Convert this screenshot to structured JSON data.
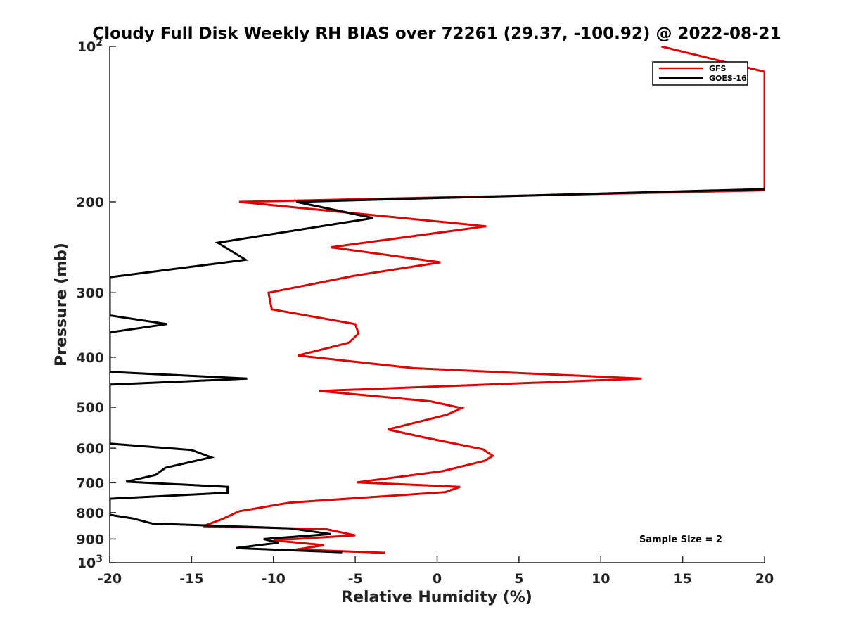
{
  "chart_data": {
    "type": "line",
    "title": "Cloudy Full Disk Weekly RH BIAS over 72261 (29.37, -100.92) @ 2022-08-21",
    "xlabel": "Relative Humidity (%)",
    "ylabel": "Pressure (mb)",
    "xlim": [
      -20,
      20
    ],
    "ylim": [
      100,
      1000
    ],
    "y_scale": "log",
    "y_reversed": true,
    "grid": false,
    "legend_position": "top-right",
    "x_ticks": [
      "-20",
      "-15",
      "-10",
      "-5",
      "0",
      "5",
      "10",
      "15",
      "20"
    ],
    "y_ticks": [
      {
        "value": 100,
        "base": "10",
        "exp": "2"
      },
      {
        "value": 200,
        "label": "200"
      },
      {
        "value": 300,
        "label": "300"
      },
      {
        "value": 400,
        "label": "400"
      },
      {
        "value": 500,
        "label": "500"
      },
      {
        "value": 600,
        "label": "600"
      },
      {
        "value": 700,
        "label": "700"
      },
      {
        "value": 800,
        "label": "800"
      },
      {
        "value": 900,
        "label": "900"
      },
      {
        "value": 1000,
        "base": "10",
        "exp": "3"
      }
    ],
    "annotation": "Sample Size = 2",
    "series": [
      {
        "name": "GFS",
        "color": "#e00000",
        "points": [
          [
            13.7,
            100
          ],
          [
            20,
            112
          ],
          [
            20,
            190
          ],
          [
            -12.1,
            200
          ],
          [
            3.0,
            223
          ],
          [
            -6.5,
            245
          ],
          [
            0.2,
            262
          ],
          [
            -5.0,
            278
          ],
          [
            -10.3,
            300
          ],
          [
            -10.1,
            323
          ],
          [
            -5.0,
            345
          ],
          [
            -4.8,
            360
          ],
          [
            -5.4,
            375
          ],
          [
            -8.5,
            397
          ],
          [
            -1.4,
            420
          ],
          [
            12.5,
            440
          ],
          [
            -7.2,
            465
          ],
          [
            -0.4,
            487
          ],
          [
            1.5,
            502
          ],
          [
            0.6,
            517
          ],
          [
            -3.0,
            552
          ],
          [
            -0.8,
            572
          ],
          [
            2.8,
            603
          ],
          [
            3.4,
            621
          ],
          [
            2.9,
            635
          ],
          [
            0.3,
            665
          ],
          [
            -4.9,
            699
          ],
          [
            1.4,
            713
          ],
          [
            0.5,
            730
          ],
          [
            -9.0,
            765
          ],
          [
            -12.1,
            795
          ],
          [
            -13.1,
            823
          ],
          [
            -14.3,
            850
          ],
          [
            -6.8,
            861
          ],
          [
            -5.0,
            885
          ],
          [
            -10.0,
            905
          ],
          [
            -6.9,
            925
          ],
          [
            -8.6,
            943
          ],
          [
            -3.2,
            957
          ]
        ]
      },
      {
        "name": "GOES-16",
        "color": "#000000",
        "points": [
          [
            20,
            189
          ],
          [
            -8.6,
            200
          ],
          [
            -3.9,
            215
          ],
          [
            -13.4,
            240
          ],
          [
            -11.7,
            259
          ],
          [
            -20,
            280
          ],
          [
            -20,
            332
          ],
          [
            -16.5,
            345
          ],
          [
            -20,
            358
          ],
          [
            -20,
            427
          ],
          [
            -11.6,
            440
          ],
          [
            -20,
            452
          ],
          [
            -20,
            588
          ],
          [
            -15.0,
            605
          ],
          [
            -13.8,
            625
          ],
          [
            -16.6,
            655
          ],
          [
            -17.2,
            676
          ],
          [
            -19.0,
            697
          ],
          [
            -12.8,
            713
          ],
          [
            -12.8,
            732
          ],
          [
            -20,
            752
          ],
          [
            -20,
            808
          ],
          [
            -18.6,
            821
          ],
          [
            -17.4,
            840
          ],
          [
            -9.0,
            858
          ],
          [
            -6.5,
            880
          ],
          [
            -10.6,
            900
          ],
          [
            -9.7,
            915
          ],
          [
            -10.3,
            920
          ],
          [
            -12.3,
            937
          ],
          [
            -5.8,
            955
          ]
        ]
      }
    ]
  }
}
